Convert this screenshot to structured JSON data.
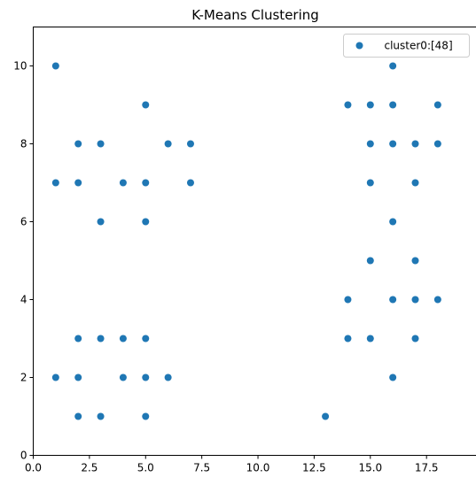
{
  "chart_data": {
    "type": "scatter",
    "title": "K-Means Clustering",
    "xlabel": "",
    "ylabel": "",
    "xlim": [
      0,
      19.8
    ],
    "ylim": [
      0,
      11
    ],
    "x_ticks": [
      0.0,
      2.5,
      5.0,
      7.5,
      10.0,
      12.5,
      15.0,
      17.5
    ],
    "x_tick_labels": [
      "0.0",
      "2.5",
      "5.0",
      "7.5",
      "10.0",
      "12.5",
      "15.0",
      "17.5"
    ],
    "y_ticks": [
      0,
      2,
      4,
      6,
      8,
      10
    ],
    "y_tick_labels": [
      "0",
      "2",
      "4",
      "6",
      "8",
      "10"
    ],
    "grid": false,
    "legend_position": "top-right",
    "series": [
      {
        "name": "cluster0:[48]",
        "color": "#1f77b4",
        "points": [
          [
            1,
            10
          ],
          [
            5,
            9
          ],
          [
            2,
            8
          ],
          [
            3,
            8
          ],
          [
            6,
            8
          ],
          [
            7,
            8
          ],
          [
            1,
            7
          ],
          [
            2,
            7
          ],
          [
            4,
            7
          ],
          [
            5,
            7
          ],
          [
            7,
            7
          ],
          [
            3,
            6
          ],
          [
            5,
            6
          ],
          [
            2,
            3
          ],
          [
            3,
            3
          ],
          [
            4,
            3
          ],
          [
            5,
            3
          ],
          [
            1,
            2
          ],
          [
            2,
            2
          ],
          [
            4,
            2
          ],
          [
            5,
            2
          ],
          [
            6,
            2
          ],
          [
            2,
            1
          ],
          [
            3,
            1
          ],
          [
            5,
            1
          ],
          [
            16,
            10
          ],
          [
            14,
            9
          ],
          [
            15,
            9
          ],
          [
            16,
            9
          ],
          [
            18,
            9
          ],
          [
            15,
            8
          ],
          [
            16,
            8
          ],
          [
            17,
            8
          ],
          [
            18,
            8
          ],
          [
            15,
            7
          ],
          [
            17,
            7
          ],
          [
            16,
            6
          ],
          [
            15,
            5
          ],
          [
            17,
            5
          ],
          [
            14,
            4
          ],
          [
            16,
            4
          ],
          [
            17,
            4
          ],
          [
            18,
            4
          ],
          [
            14,
            3
          ],
          [
            15,
            3
          ],
          [
            17,
            3
          ],
          [
            16,
            2
          ],
          [
            13,
            1
          ]
        ]
      }
    ]
  }
}
